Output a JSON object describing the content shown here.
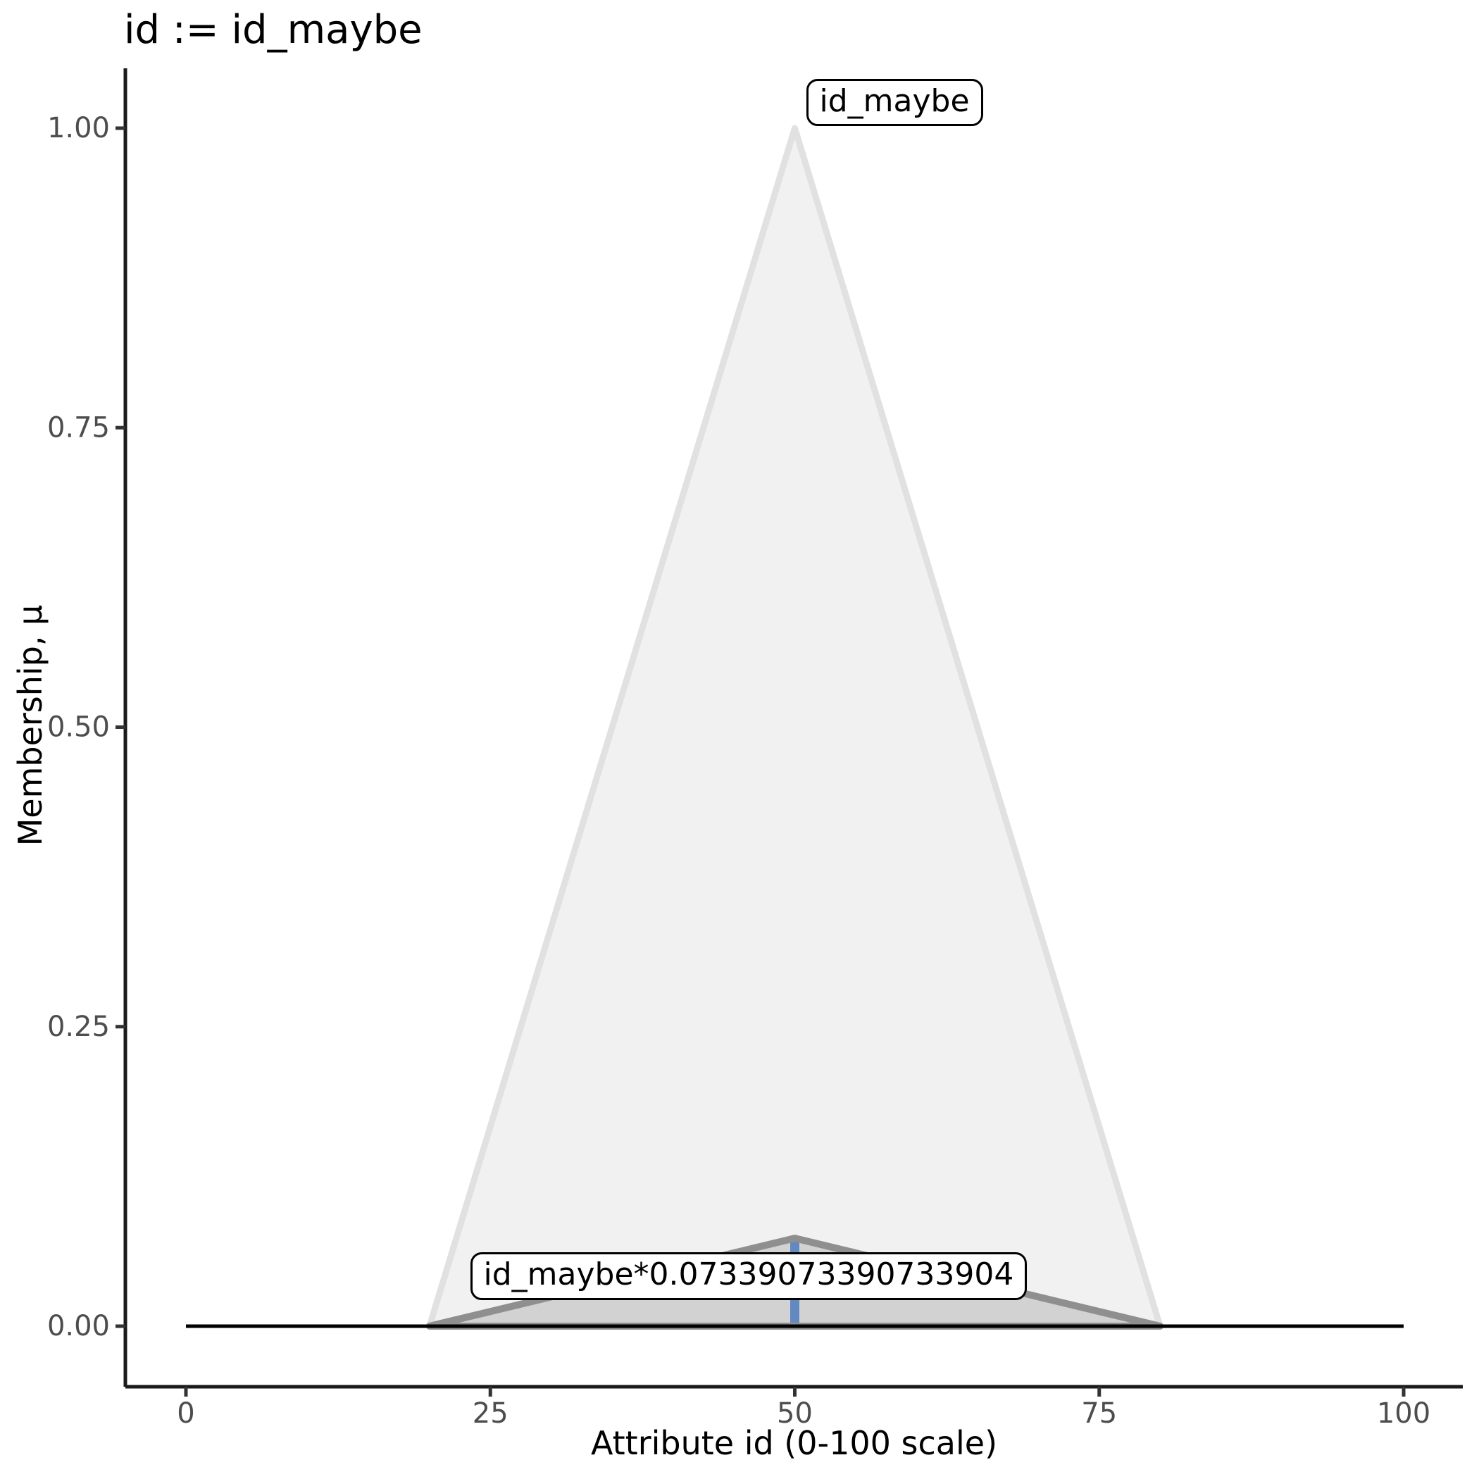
{
  "chart_data": {
    "type": "area",
    "title": "id := id_maybe",
    "xlabel": "Attribute id (0-100 scale)",
    "ylabel": "Membership, μ",
    "xlim": [
      0,
      100
    ],
    "ylim": [
      0,
      1
    ],
    "grid": false,
    "legend": "none",
    "xticks": {
      "values": [
        0,
        25,
        50,
        75,
        100
      ],
      "labels": [
        "0",
        "25",
        "50",
        "75",
        "100"
      ]
    },
    "yticks": {
      "values": [
        0,
        0.25,
        0.5,
        0.75,
        1
      ],
      "labels": [
        "0.00",
        "0.25",
        "0.50",
        "0.75",
        "1.00"
      ]
    },
    "series": [
      {
        "name": "id_maybe",
        "shape": "polygon",
        "points": [
          [
            20,
            0
          ],
          [
            50,
            1
          ],
          [
            80,
            0
          ]
        ],
        "fill": "#f1f1f1",
        "stroke": "#e1e1e1",
        "stroke_width": 9
      },
      {
        "name": "id_maybe_scaled",
        "shape": "polygon",
        "points": [
          [
            20,
            0
          ],
          [
            50,
            0.07339073390733904
          ],
          [
            80,
            0
          ]
        ],
        "fill": "#d2d2d2",
        "stroke": "#8f8f8f",
        "stroke_width": 10
      },
      {
        "name": "centroid_line",
        "shape": "line",
        "points": [
          [
            50,
            0
          ],
          [
            50,
            0.07339073390733904
          ]
        ],
        "stroke": "#6289c0",
        "stroke_width": 13
      },
      {
        "name": "baseline",
        "shape": "line",
        "points": [
          [
            0,
            0
          ],
          [
            100,
            0
          ]
        ],
        "stroke": "#000000",
        "stroke_width": 5
      }
    ],
    "annotations": [
      {
        "text": "id_maybe",
        "x": 50,
        "y": 1
      },
      {
        "text": "id_maybe*0.07339073390733904",
        "x": 50,
        "y": 0.07339073390733904
      }
    ],
    "colors": {
      "membership_fill": "#f1f1f1",
      "membership_stroke": "#e1e1e1",
      "scaled_fill": "#d2d2d2",
      "scaled_stroke": "#8f8f8f",
      "centroid_blue": "#6289c0",
      "axis_line": "#1a1a1a",
      "tick_mark": "#333333",
      "tick_label": "#4d4d4d",
      "text": "#000000"
    }
  }
}
